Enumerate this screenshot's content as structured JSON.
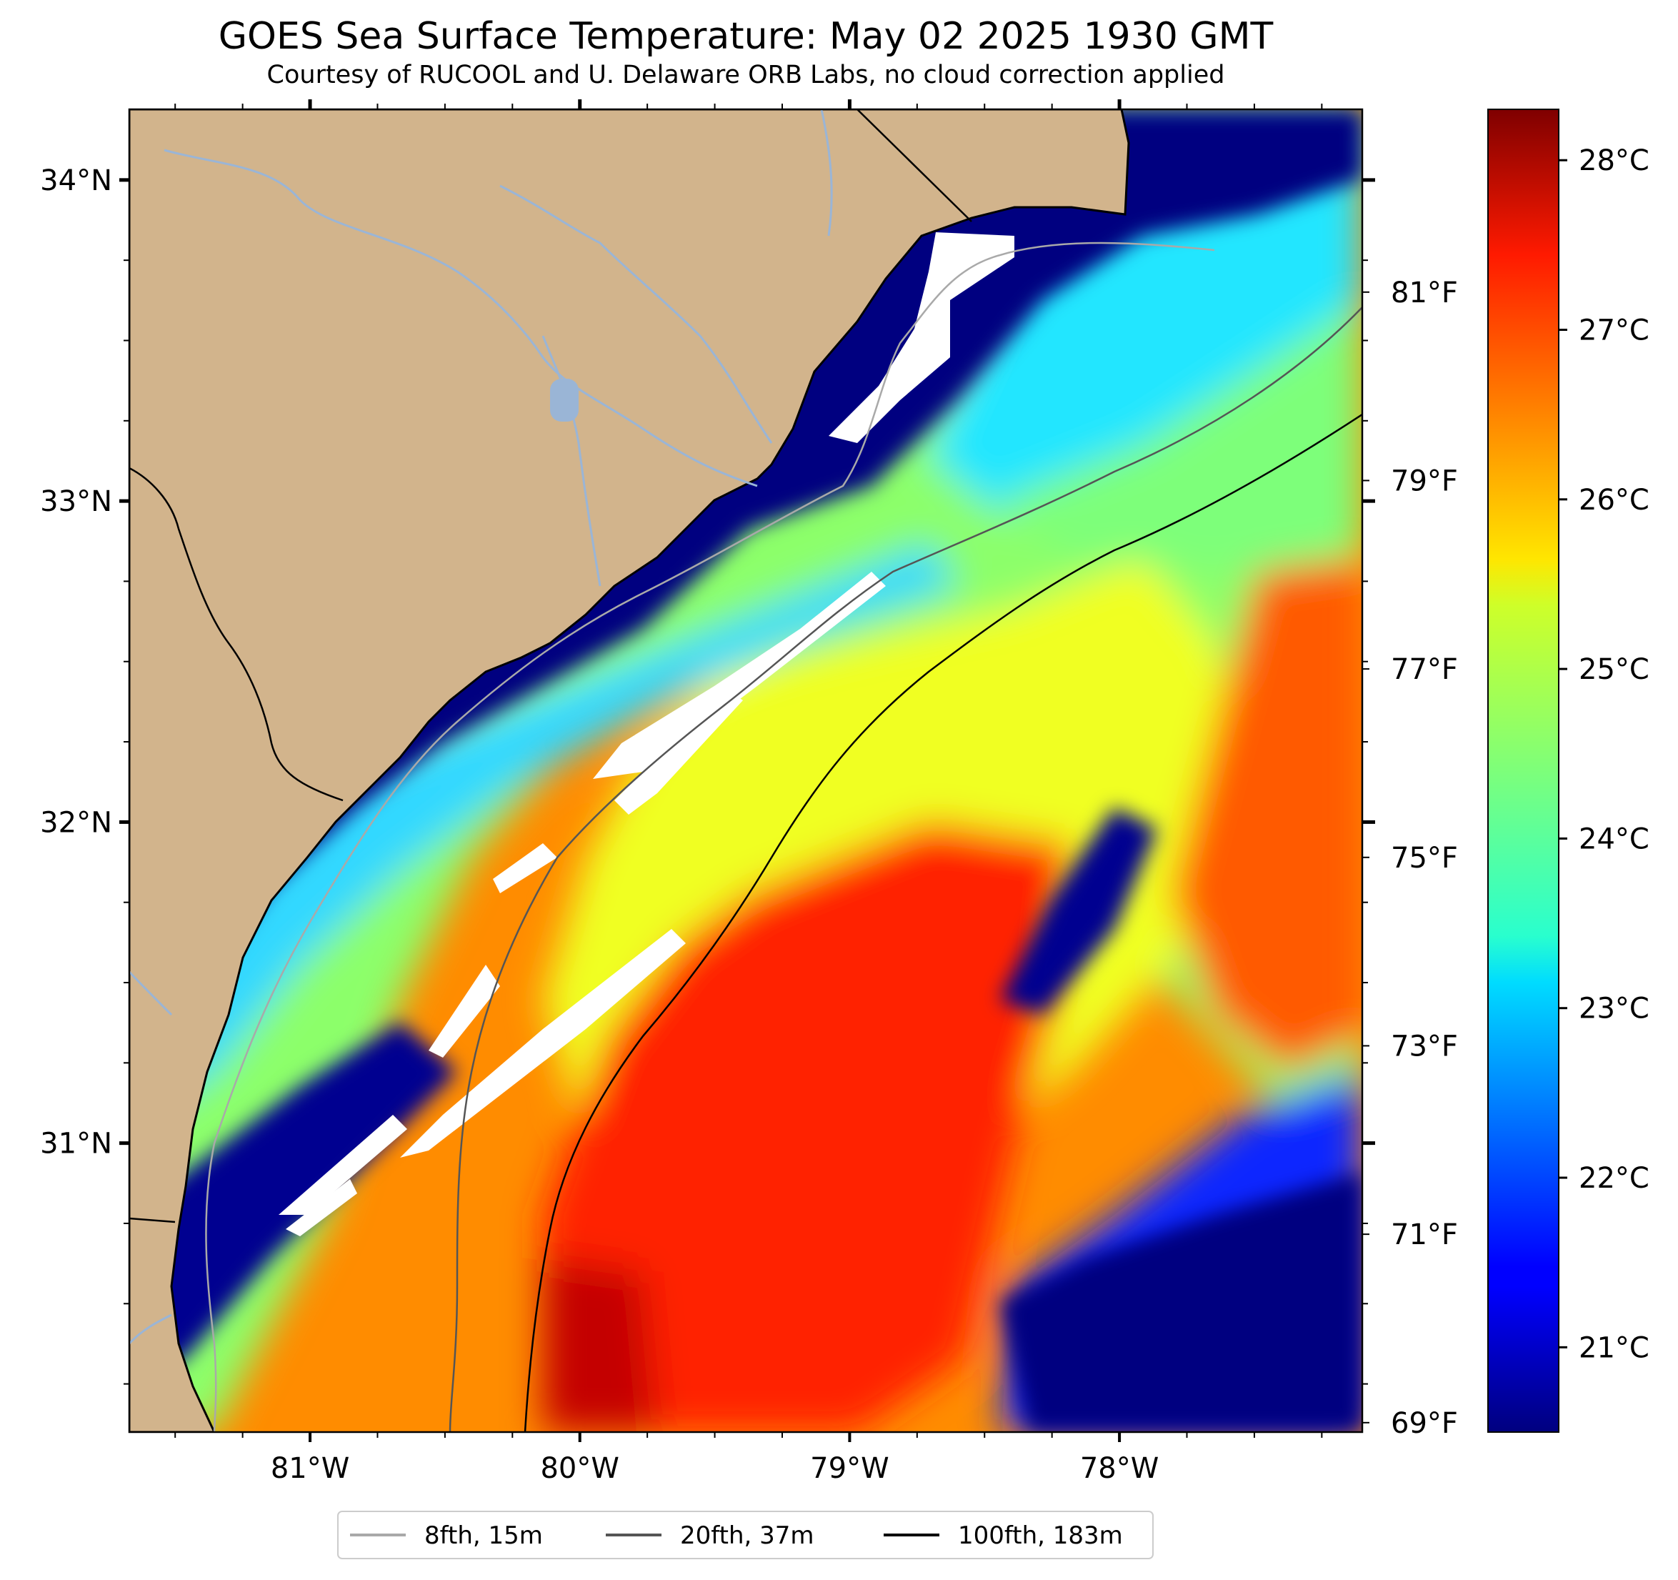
{
  "title": "GOES Sea Surface Temperature: May 02 2025 1930 GMT",
  "subtitle": "Courtesy of RUCOOL and U. Delaware ORB Labs, no cloud correction applied",
  "map": {
    "lon_range": [
      -81.67,
      -77.1
    ],
    "lat_range": [
      30.1,
      34.22
    ],
    "lon_ticks": [
      "81°W",
      "80°W",
      "79°W",
      "78°W"
    ],
    "lat_ticks": [
      "34°N",
      "33°N",
      "32°N",
      "31°N"
    ],
    "right_axis_ticks": [
      "81°F",
      "79°F",
      "77°F",
      "75°F",
      "73°F",
      "71°F",
      "69°F"
    ],
    "land_color": "#d2b48c",
    "no_data_color": "#ffffff"
  },
  "colorbar": {
    "colormap": "jet",
    "range_c": [
      20.5,
      28.3
    ],
    "ticks": [
      "28°C",
      "27°C",
      "26°C",
      "25°C",
      "24°C",
      "23°C",
      "22°C",
      "21°C"
    ]
  },
  "legend": {
    "items": [
      {
        "label": "8fth, 15m",
        "color": "#a9a9a9"
      },
      {
        "label": "20fth, 37m",
        "color": "#555555"
      },
      {
        "label": "100fth, 183m",
        "color": "#000000"
      }
    ]
  }
}
